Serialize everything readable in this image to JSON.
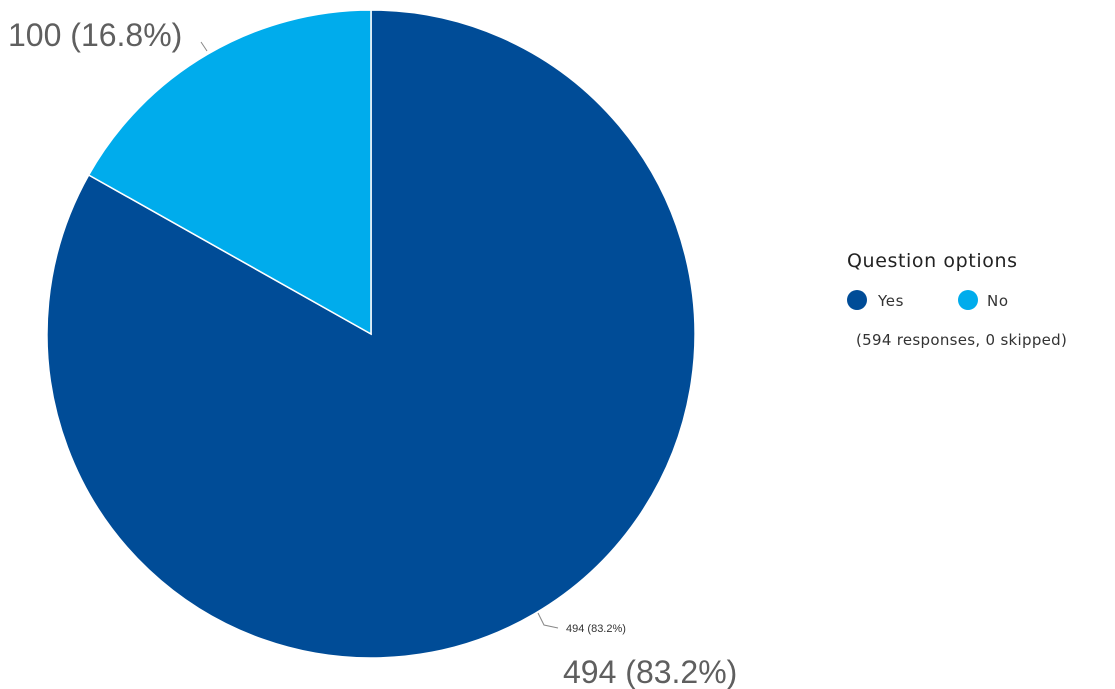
{
  "chart_data": {
    "type": "pie",
    "categories": [
      "Yes",
      "No"
    ],
    "values": [
      494,
      100
    ],
    "percentages": [
      "83.2%",
      "16.8%"
    ],
    "colors": [
      "#004c97",
      "#00acec"
    ],
    "slice_labels": [
      "494 (83.2%)",
      "100 (16.8%)"
    ],
    "small_slice_labels": [
      "494 (83.2%)",
      ""
    ],
    "legend": {
      "title": "Question options",
      "items": [
        "Yes",
        "No"
      ],
      "note": "(594 responses, 0 skipped)",
      "placement": "right"
    }
  }
}
